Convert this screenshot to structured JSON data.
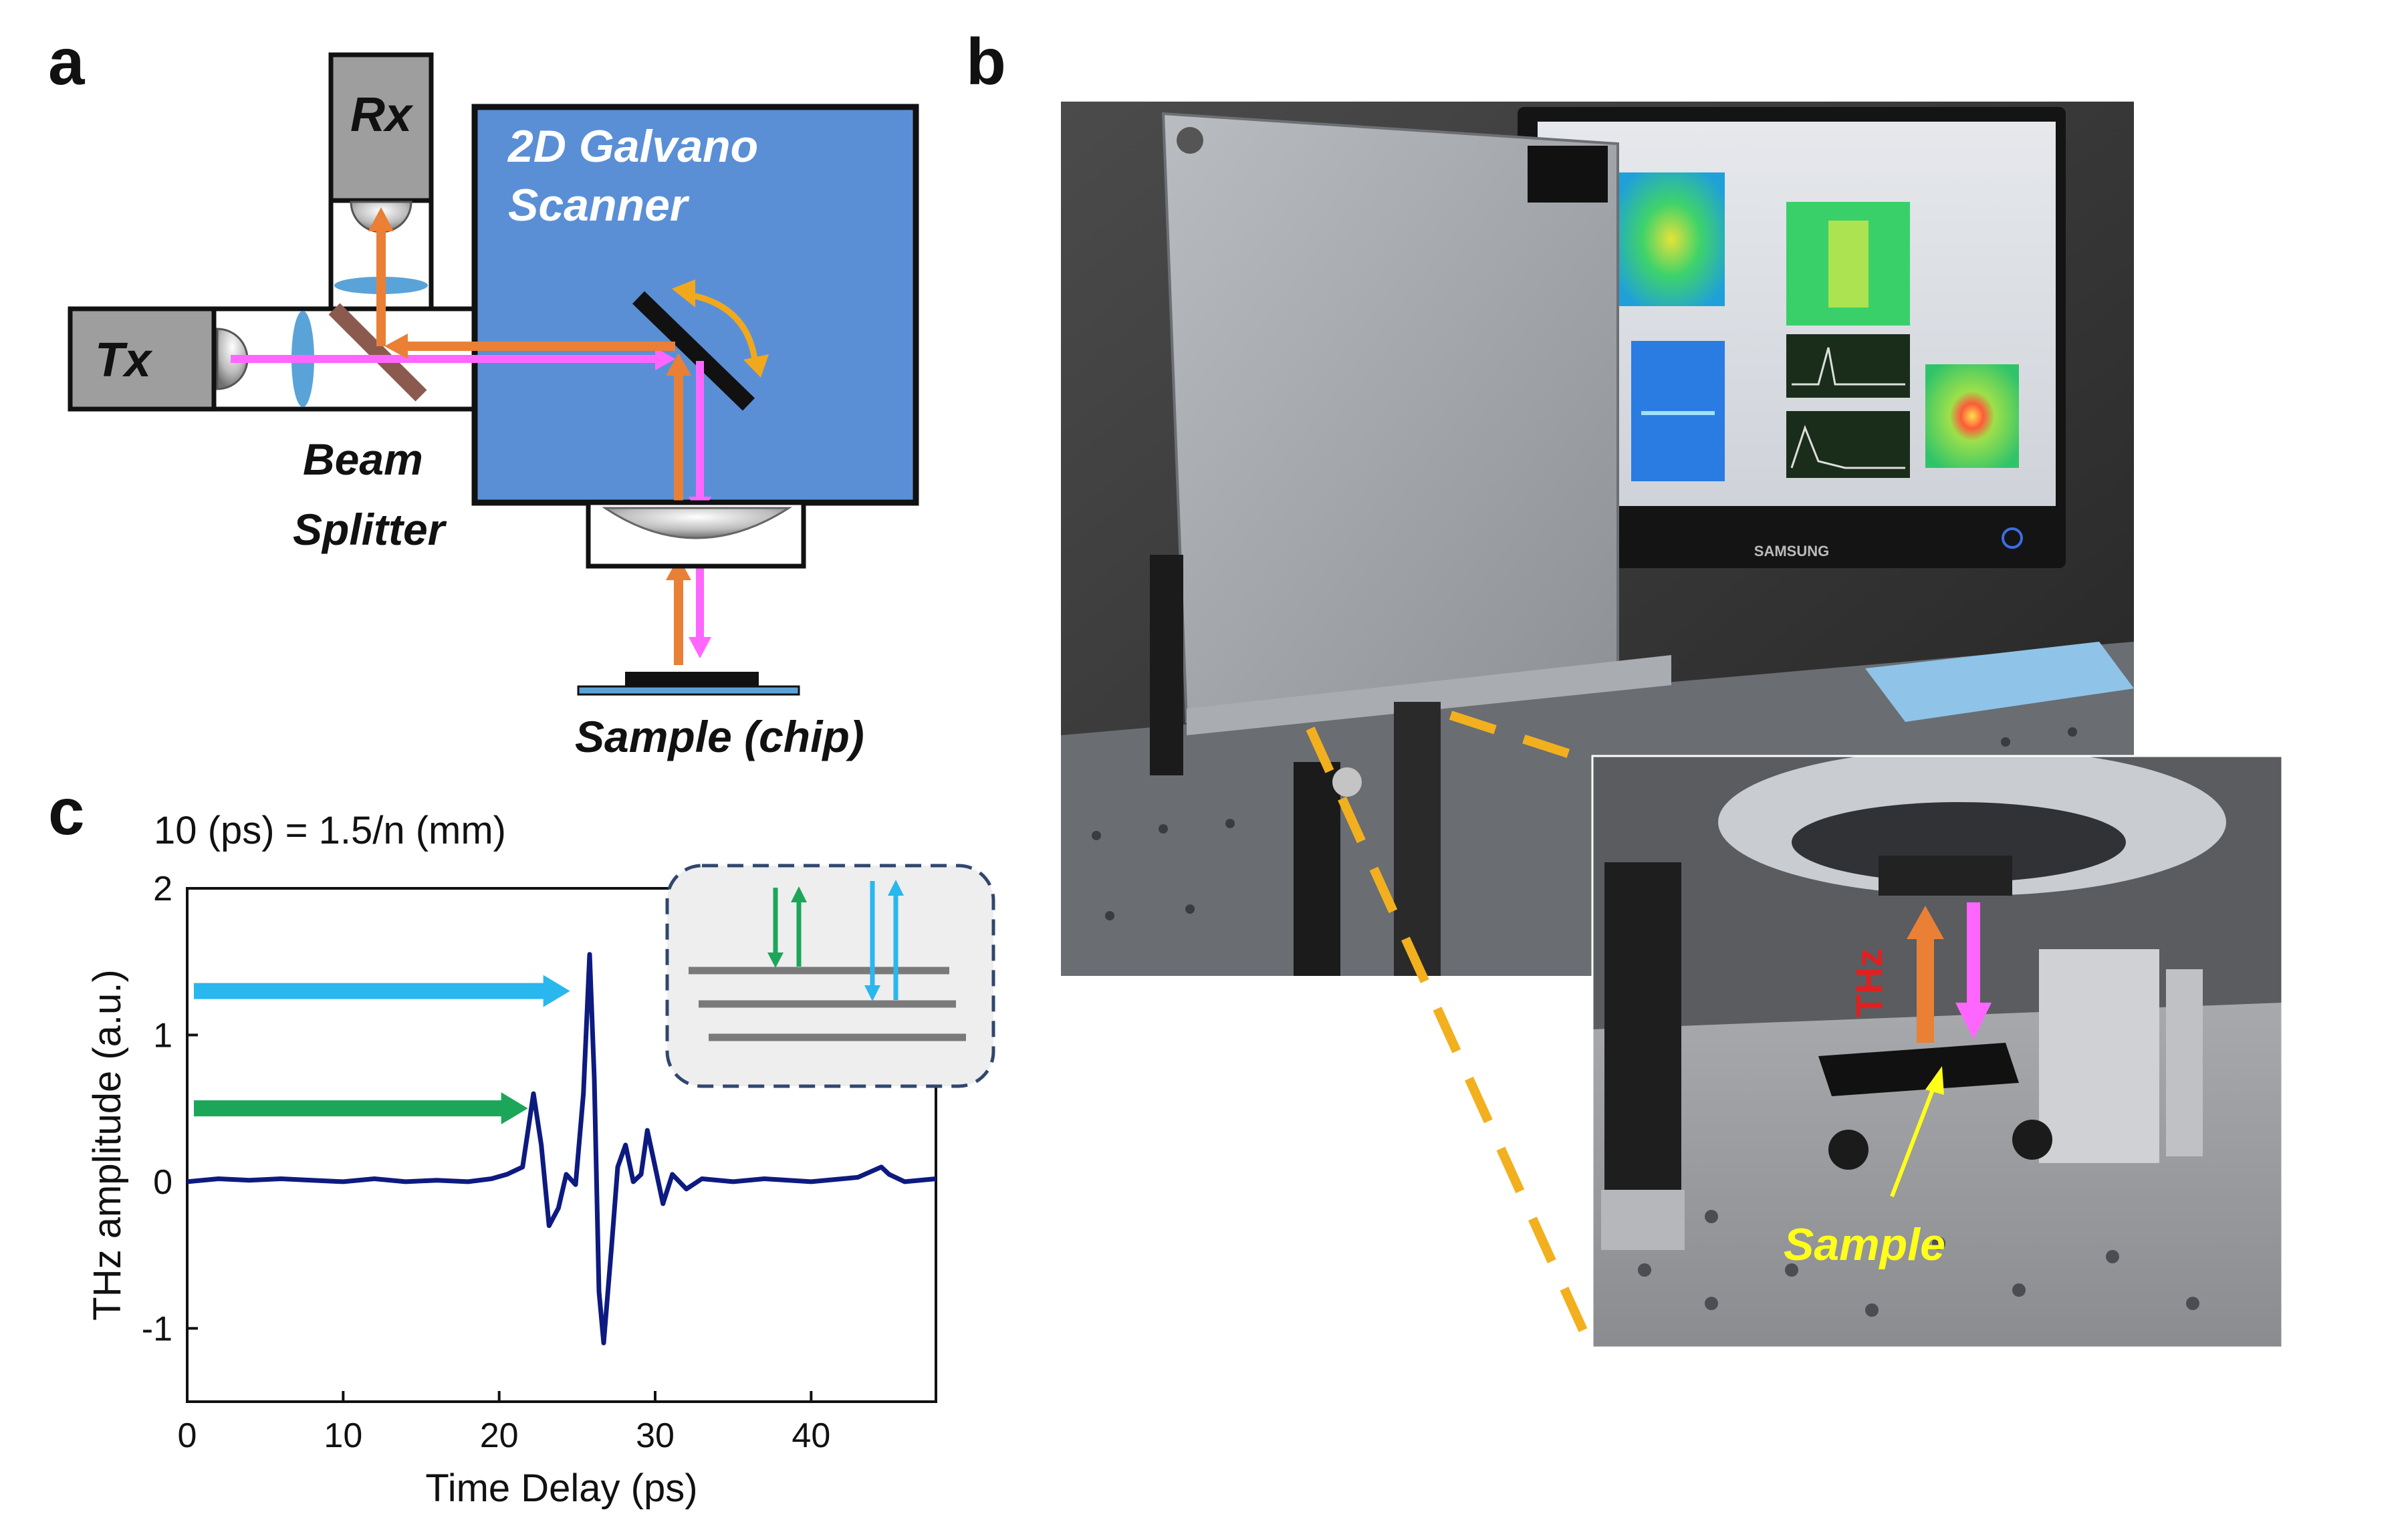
{
  "panels": {
    "a": {
      "letter": "a",
      "labels": {
        "rx": "Rx",
        "tx": "Tx",
        "scanner_line1": "2D Galvano",
        "scanner_line2": "Scanner",
        "beam_line1": "Beam",
        "beam_line2": "Splitter",
        "sample": "Sample (chip)"
      },
      "colors": {
        "scanner_fill": "#5a8fd6",
        "module_fill": "#9e9e9e",
        "forward_beam": "#ff66ff",
        "return_beam": "#e98035",
        "lens": "#5aa3d8",
        "splitter": "#8b5a4f"
      }
    },
    "b": {
      "letter": "b",
      "inset_labels": {
        "thz": "THz",
        "sample": "Sample"
      },
      "monitor_brand": "SAMSUNG",
      "colors": {
        "callout_dash": "#f2b01e",
        "thz_text": "#e02020",
        "sample_text": "#ffff1a"
      }
    },
    "c": {
      "letter": "c",
      "equation": "10 (ps) = 1.5/n (mm)",
      "colors": {
        "trace": "#0d1a80",
        "arrow_top": "#29b7ee",
        "arrow_bottom": "#1ca65a"
      }
    }
  },
  "chart_data": {
    "type": "line",
    "title": "10 (ps) = 1.5/n (mm)",
    "xlabel": "Time Delay (ps)",
    "ylabel": "THz amplitude (a.u.)",
    "xlim": [
      0,
      48
    ],
    "ylim": [
      -1.5,
      2
    ],
    "xticks": [
      0,
      10,
      20,
      30,
      40
    ],
    "yticks": [
      -1,
      0,
      1,
      2
    ],
    "series": [
      {
        "x": [
          0,
          2,
          4,
          6,
          8,
          10,
          12,
          14,
          16,
          18,
          19.5,
          20.5,
          21.5,
          22.2,
          22.7,
          23.2,
          23.8,
          24.3,
          24.9,
          25.4,
          25.8,
          26.1,
          26.4,
          26.7,
          27.2,
          27.6,
          28.1,
          28.6,
          29.1,
          29.5,
          29.9,
          30.5,
          31.1,
          32,
          33,
          35,
          37,
          40,
          43,
          44.5,
          45,
          46,
          48
        ],
        "values": [
          0.0,
          0.02,
          0.01,
          0.02,
          0.01,
          0.0,
          0.02,
          0.0,
          0.01,
          0.0,
          0.02,
          0.05,
          0.1,
          0.6,
          0.25,
          -0.3,
          -0.18,
          0.05,
          -0.02,
          0.6,
          1.55,
          0.7,
          -0.75,
          -1.1,
          -0.45,
          0.1,
          0.25,
          0.0,
          0.05,
          0.35,
          0.15,
          -0.15,
          0.05,
          -0.05,
          0.02,
          0.0,
          0.02,
          0.0,
          0.03,
          0.1,
          0.05,
          0.0,
          0.02
        ]
      }
    ],
    "annotations": [
      {
        "type": "arrow",
        "y": 1.3,
        "x_to": 25.4
      },
      {
        "type": "arrow",
        "y": 0.5,
        "x_to": 22.7
      }
    ],
    "legend": "none",
    "grid": false
  }
}
